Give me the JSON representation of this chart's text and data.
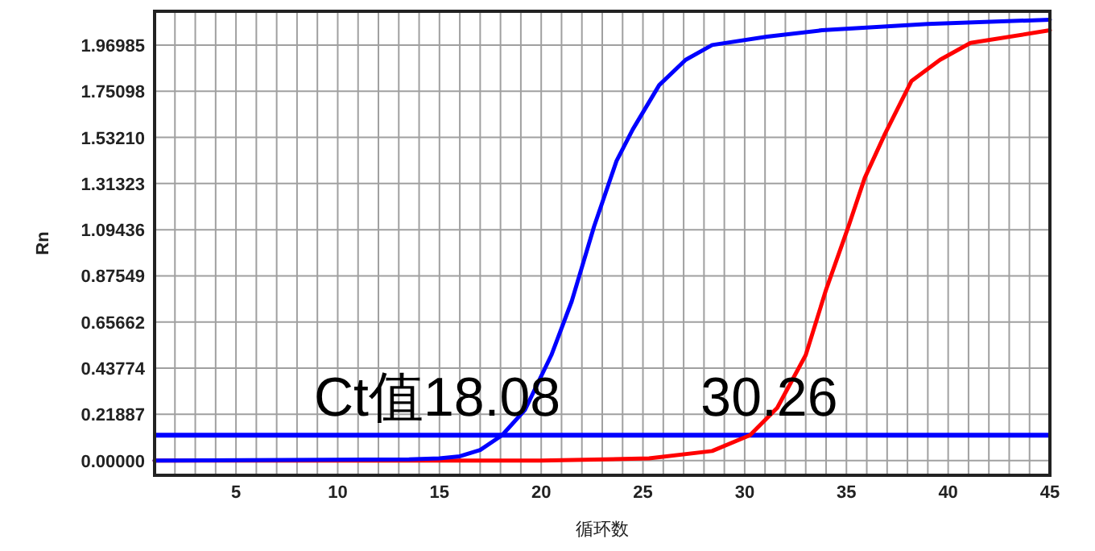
{
  "chart_data": {
    "type": "line",
    "xlabel": "循环数",
    "ylabel": "Rn",
    "xlim": [
      1,
      45
    ],
    "ylim": [
      -0.07,
      2.13
    ],
    "xticks": [
      5,
      10,
      15,
      20,
      25,
      30,
      35,
      40,
      45
    ],
    "yticks": [
      {
        "value": 0,
        "label": "0.00000"
      },
      0.21887,
      0.43774,
      0.65662,
      0.87549,
      1.09436,
      1.31323,
      {
        "value": 1.5321,
        "label": "1.53210"
      },
      1.75098,
      1.96985
    ],
    "grid": true,
    "line_style": "solid",
    "marker": "none",
    "ref_lines": [
      {
        "axis": "y",
        "value": 0.12,
        "color": "#0000ff"
      }
    ],
    "annotations": [
      "Ct值18.08",
      "30.26"
    ],
    "series": [
      {
        "color": "#ff0000",
        "x": [
          1,
          10,
          20,
          25.3,
          28.4,
          30.26,
          31.6,
          33.0,
          34.0,
          35.1,
          35.9,
          36.9,
          38.2,
          39.6,
          41.1,
          45
        ],
        "values": [
          0,
          0,
          0,
          0.01,
          0.045,
          0.12,
          0.25,
          0.5,
          0.81,
          1.11,
          1.34,
          1.55,
          1.8,
          1.9,
          1.98,
          2.04
        ]
      },
      {
        "color": "#0000ff",
        "x": [
          1,
          13.5,
          15,
          16,
          17,
          18.08,
          19.2,
          20.5,
          21.5,
          22.6,
          23.7,
          24.5,
          25.8,
          27.1,
          28.4,
          31.1,
          33.8,
          39,
          45
        ],
        "values": [
          0,
          0.005,
          0.01,
          0.02,
          0.05,
          0.12,
          0.24,
          0.5,
          0.755,
          1.11,
          1.42,
          1.57,
          1.78,
          1.9,
          1.97,
          2.01,
          2.04,
          2.07,
          2.09
        ]
      }
    ]
  }
}
